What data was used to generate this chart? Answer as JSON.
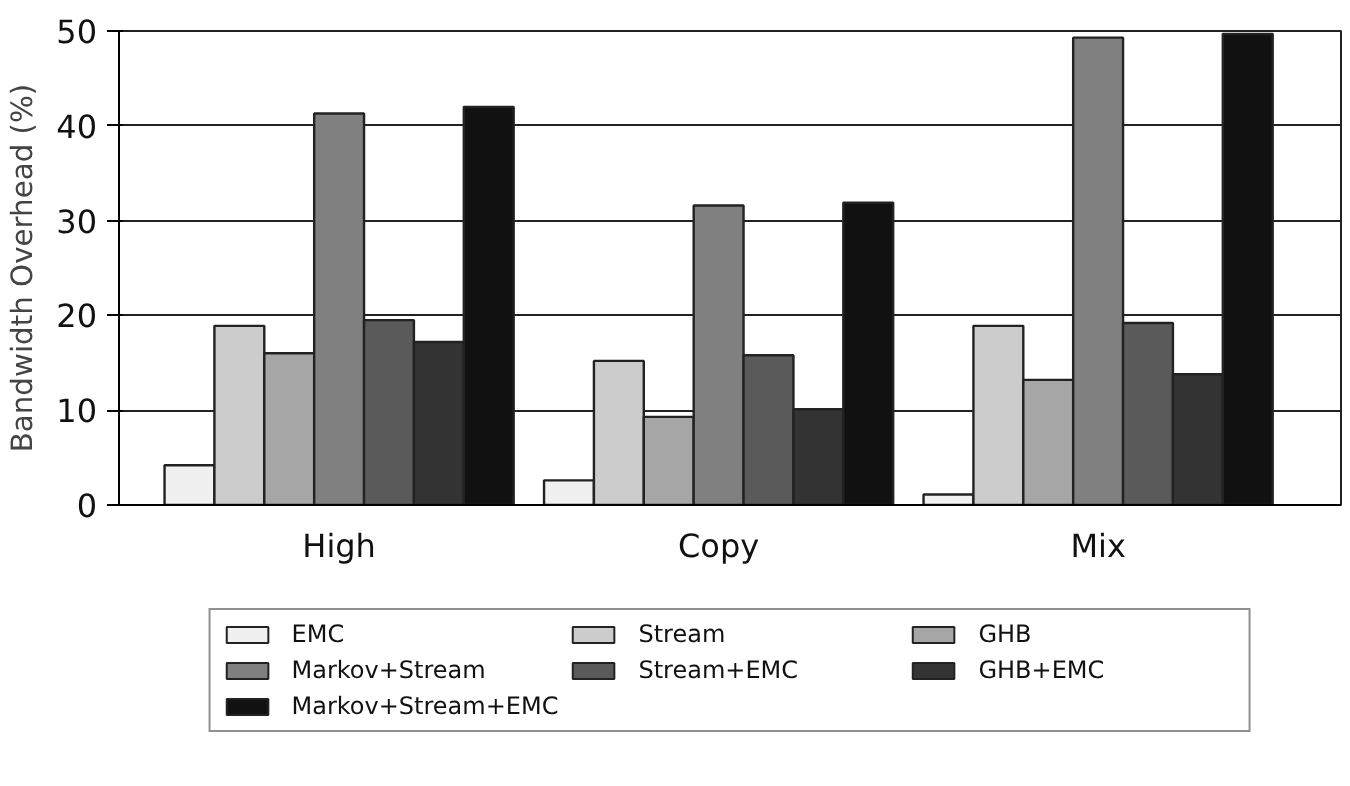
{
  "chart_data": {
    "type": "bar",
    "ylabel": "Bandwidth Overhead (%)",
    "categories": [
      "High",
      "Copy",
      "Mix"
    ],
    "series": [
      {
        "name": "EMC",
        "color": "#f0f0f0",
        "values": [
          4.2,
          2.6,
          1.1
        ]
      },
      {
        "name": "Stream",
        "color": "#cccccc",
        "values": [
          18.9,
          15.2,
          18.9
        ]
      },
      {
        "name": "GHB",
        "color": "#a6a6a6",
        "values": [
          16.0,
          9.3,
          13.2
        ]
      },
      {
        "name": "Markov+Stream",
        "color": "#808080",
        "values": [
          41.3,
          31.6,
          49.3
        ]
      },
      {
        "name": "Stream+EMC",
        "color": "#5a5a5a",
        "values": [
          19.5,
          15.8,
          19.2
        ]
      },
      {
        "name": "GHB+EMC",
        "color": "#333333",
        "values": [
          17.2,
          10.1,
          13.8
        ]
      },
      {
        "name": "Markov+Stream+EMC",
        "color": "#111111",
        "values": [
          42.0,
          31.9,
          49.7
        ]
      }
    ],
    "ylim": [
      0,
      50
    ],
    "yticks": [
      0,
      10,
      20,
      30,
      40,
      50
    ],
    "grid": "y",
    "legend": "bottom"
  }
}
